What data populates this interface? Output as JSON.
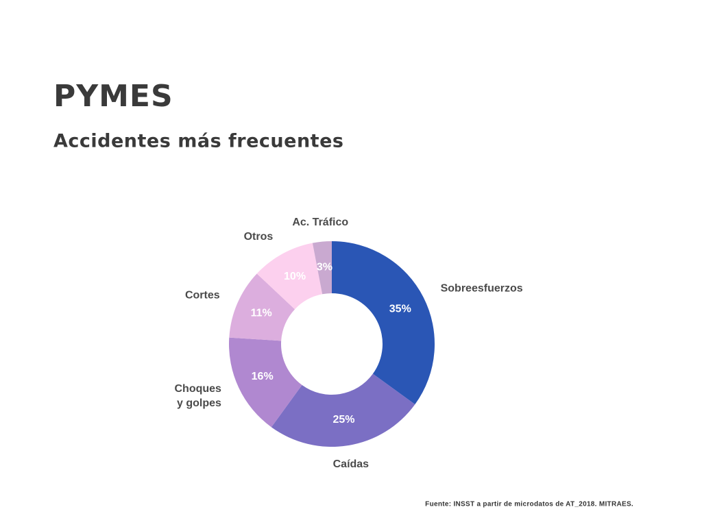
{
  "chart_data": {
    "type": "donut",
    "title": "PYMES",
    "subtitle": "Accidentes más frecuentes",
    "source": "Fuente: INSST a partir de microdatos de AT_2018. MITRAES.",
    "categories": [
      "Sobreesfuerzos",
      "Caídas",
      "Choques\ny golpes",
      "Cortes",
      "Otros",
      "Ac. Tráfico"
    ],
    "values": [
      35,
      25,
      16,
      11,
      10,
      3
    ],
    "value_labels": [
      "35%",
      "25%",
      "16%",
      "11%",
      "10%",
      "3%"
    ],
    "colors": [
      "#2a56b5",
      "#7b6fc4",
      "#b088d0",
      "#dcaede",
      "#fcd0ee",
      "#c9a9d0"
    ]
  }
}
